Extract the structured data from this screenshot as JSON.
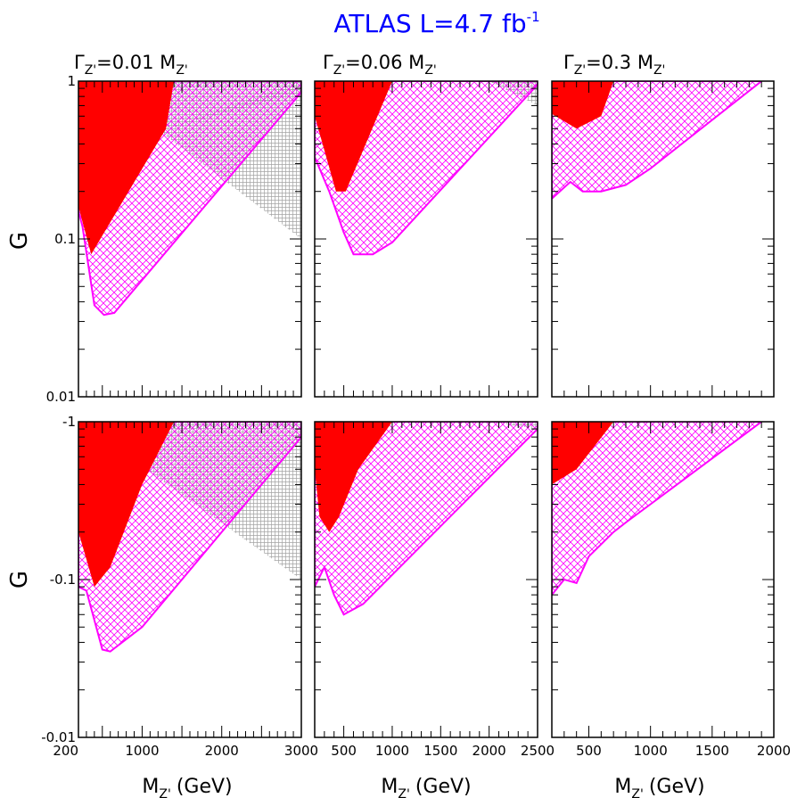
{
  "title": {
    "main": "ATLAS L=4.7 fb",
    "sup": "-1"
  },
  "colors": {
    "title": "#0000ff",
    "red": "#ff0000",
    "magenta": "#ff00ff",
    "grey": "#999999",
    "frame": "#000000"
  },
  "panel_titles": [
    {
      "gamma": "Γ",
      "sub1": "Z'",
      "text": "=0.01 M",
      "sub2": "Z'"
    },
    {
      "gamma": "Γ",
      "sub1": "Z'",
      "text": "=0.06 M",
      "sub2": "Z'"
    },
    {
      "gamma": "Γ",
      "sub1": "Z'",
      "text": "=0.3 M",
      "sub2": "Z'"
    }
  ],
  "y_axis_label": "G",
  "x_axis_label": {
    "main": "M",
    "sub": "Z'",
    "unit": "(GeV)"
  },
  "chart_data": [
    {
      "type": "area",
      "panel": "top-left",
      "title": "Γ_Z'=0.01 M_Z'",
      "ylabel": "G",
      "xlim": [
        200,
        3000
      ],
      "ylim": [
        0.01,
        1
      ],
      "log_y": true,
      "x_ticks": [],
      "y_ticks": [
        "1",
        "0.1",
        "0.01"
      ],
      "grid": false,
      "series": [
        {
          "style": "red-solid",
          "x": [
            200,
            200,
            360,
            1300,
            1400
          ],
          "y": [
            1,
            0.16,
            0.08,
            0.5,
            1
          ]
        },
        {
          "style": "magenta-hatched",
          "x": [
            200,
            200,
            250,
            400,
            520,
            650,
            3000,
            3000
          ],
          "y": [
            1,
            0.15,
            0.12,
            0.038,
            0.033,
            0.034,
            0.85,
            1
          ]
        },
        {
          "style": "grey-hatched",
          "x": [
            400,
            3000,
            3000
          ],
          "y": [
            1,
            1,
            0.1
          ]
        },
        {
          "style": "grey-hatched",
          "x": [
            1300,
            3000,
            3000
          ],
          "y": [
            0.5,
            1,
            0.85
          ]
        }
      ]
    },
    {
      "type": "area",
      "panel": "top-middle",
      "title": "Γ_Z'=0.06 M_Z'",
      "xlim": [
        200,
        2500
      ],
      "ylim": [
        0.01,
        1
      ],
      "log_y": true,
      "x_ticks": [],
      "y_ticks": [],
      "grid": false,
      "series": [
        {
          "style": "red-solid",
          "x": [
            200,
            200,
            420,
            520,
            1000
          ],
          "y": [
            1,
            0.6,
            0.2,
            0.2,
            1
          ]
        },
        {
          "style": "magenta-hatched",
          "x": [
            200,
            200,
            350,
            500,
            600,
            800,
            1000,
            2500,
            2500
          ],
          "y": [
            1,
            0.33,
            0.2,
            0.11,
            0.08,
            0.08,
            0.095,
            0.95,
            1
          ]
        },
        {
          "style": "grey-hatched",
          "x": [
            2000,
            2500,
            2500
          ],
          "y": [
            1,
            1,
            0.7
          ]
        }
      ]
    },
    {
      "type": "area",
      "panel": "top-right",
      "title": "Γ_Z'=0.3 M_Z'",
      "xlim": [
        200,
        2000
      ],
      "ylim": [
        0.01,
        1
      ],
      "log_y": true,
      "x_ticks": [],
      "y_ticks": [],
      "grid": false,
      "series": [
        {
          "style": "red-solid",
          "x": [
            200,
            200,
            400,
            600,
            700
          ],
          "y": [
            1,
            0.62,
            0.5,
            0.6,
            1
          ]
        },
        {
          "style": "magenta-hatched",
          "x": [
            200,
            200,
            350,
            450,
            600,
            800,
            1000,
            1900,
            1900
          ],
          "y": [
            1,
            0.18,
            0.23,
            0.2,
            0.2,
            0.22,
            0.28,
            1,
            1
          ]
        }
      ]
    },
    {
      "type": "area",
      "panel": "bottom-left",
      "ylabel": "G",
      "xlabel": "M_Z' (GeV)",
      "xlim": [
        200,
        3000
      ],
      "ylim": [
        -0.01,
        -1
      ],
      "log_y": true,
      "x_ticks": [
        "200",
        "1000",
        "2000",
        "3000"
      ],
      "y_ticks": [
        "-0.01",
        "-0.1",
        "-1"
      ],
      "grid": false,
      "series": [
        {
          "style": "red-solid",
          "x": [
            200,
            200,
            400,
            600,
            1000,
            1400,
            200
          ],
          "y": [
            -1,
            -0.2,
            -0.09,
            -0.12,
            -0.4,
            -1,
            -1
          ]
        },
        {
          "style": "magenta-hatched",
          "x": [
            200,
            200,
            300,
            500,
            600,
            1000,
            3000,
            3000,
            1300,
            200
          ],
          "y": [
            -1,
            -0.09,
            -0.085,
            -0.036,
            -0.035,
            -0.05,
            -0.8,
            -1,
            -1,
            -1
          ]
        },
        {
          "style": "grey-hatched",
          "x": [
            1000,
            3000,
            3000,
            1300
          ],
          "y": [
            -0.52,
            -0.1,
            -1,
            -1
          ]
        }
      ]
    },
    {
      "type": "area",
      "panel": "bottom-middle",
      "xlabel": "M_Z' (GeV)",
      "xlim": [
        200,
        2500
      ],
      "ylim": [
        -0.01,
        -1
      ],
      "log_y": true,
      "x_ticks": [
        "500",
        "1000",
        "1500",
        "2000",
        "2500"
      ],
      "y_ticks": [],
      "grid": false,
      "series": [
        {
          "style": "red-solid",
          "x": [
            200,
            200,
            250,
            350,
            450,
            650,
            1000,
            200
          ],
          "y": [
            -1,
            -0.5,
            -0.25,
            -0.2,
            -0.25,
            -0.5,
            -1,
            -1
          ]
        },
        {
          "style": "magenta-hatched",
          "x": [
            200,
            200,
            300,
            400,
            500,
            700,
            2500,
            2500,
            200
          ],
          "y": [
            -1,
            -0.09,
            -0.12,
            -0.08,
            -0.06,
            -0.07,
            -0.9,
            -1,
            -1
          ]
        },
        {
          "style": "grey-hatched",
          "x": [
            2000,
            2500,
            2500
          ],
          "y": [
            -1,
            -0.9,
            -1
          ]
        }
      ]
    },
    {
      "type": "area",
      "panel": "bottom-right",
      "xlabel": "M_Z' (GeV)",
      "xlim": [
        200,
        2000
      ],
      "ylim": [
        -0.01,
        -1
      ],
      "log_y": true,
      "x_ticks": [
        "500",
        "1000",
        "1500",
        "2000"
      ],
      "y_ticks": [],
      "grid": false,
      "series": [
        {
          "style": "red-solid",
          "x": [
            200,
            200,
            400,
            700,
            200
          ],
          "y": [
            -1,
            -0.4,
            -0.5,
            -1,
            -1
          ]
        },
        {
          "style": "magenta-hatched",
          "x": [
            200,
            200,
            300,
            400,
            500,
            700,
            800,
            1000,
            1900,
            200
          ],
          "y": [
            -1,
            -0.08,
            -0.1,
            -0.095,
            -0.14,
            -0.2,
            -0.23,
            -0.3,
            -1,
            -1
          ]
        }
      ]
    }
  ]
}
